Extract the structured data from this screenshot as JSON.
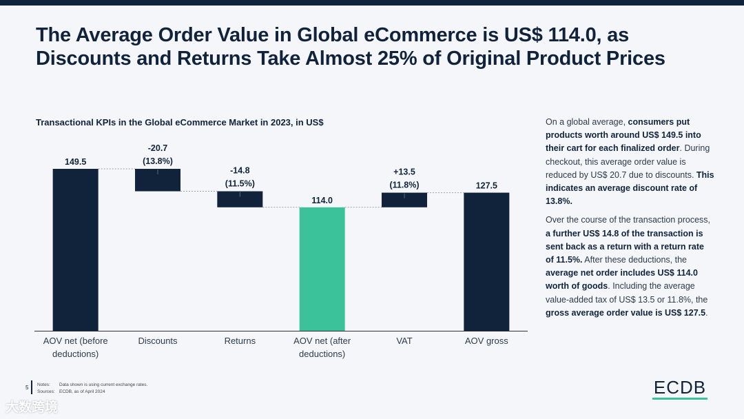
{
  "title": "The Average Order Value in Global eCommerce is US$ 114.0, as Discounts and Returns Take Almost 25% of Original Product Prices",
  "chart_data": {
    "type": "bar",
    "subtype": "waterfall",
    "title": "Transactional KPIs in the Global eCommerce Market in 2023, in US$",
    "categories": [
      "AOV net (before deductions)",
      "Discounts",
      "Returns",
      "AOV net (after deductions)",
      "VAT",
      "AOV gross"
    ],
    "steps": [
      {
        "label": "AOV net (before deductions)",
        "kind": "total",
        "start": 0,
        "end": 149.5,
        "value_label": "149.5",
        "pct_label": ""
      },
      {
        "label": "Discounts",
        "kind": "delta",
        "start": 149.5,
        "end": 128.8,
        "value_label": "-20.7",
        "pct_label": "(13.8%)"
      },
      {
        "label": "Returns",
        "kind": "delta",
        "start": 128.8,
        "end": 114.0,
        "value_label": "-14.8",
        "pct_label": "(11.5%)"
      },
      {
        "label": "AOV net (after deductions)",
        "kind": "highlight",
        "start": 0,
        "end": 114.0,
        "value_label": "114.0",
        "pct_label": ""
      },
      {
        "label": "VAT",
        "kind": "delta",
        "start": 114.0,
        "end": 127.5,
        "value_label": "+13.5",
        "pct_label": "(11.8%)"
      },
      {
        "label": "AOV gross",
        "kind": "total",
        "start": 0,
        "end": 127.5,
        "value_label": "127.5",
        "pct_label": ""
      }
    ],
    "ylim": [
      0,
      149.5
    ],
    "xlabel": "",
    "ylabel": "",
    "colors": {
      "total": "#10233b",
      "delta": "#10233b",
      "highlight": "#3cc29a",
      "axis": "#333333",
      "connector": "#9aa3ad"
    }
  },
  "side": {
    "p1_a": "On a global average, ",
    "p1_b": "consumers put products worth around US$ 149.5 into their cart for each finalized order",
    "p1_c": ". During checkout, this average order value is reduced by US$ 20.7 due to discounts. ",
    "p1_d": "This indicates an average discount rate of 13.8%.",
    "p2_a": "Over the course of the transaction process, ",
    "p2_b": "a further US$ 14.8 of the transaction is sent back as a return with a return rate of 11.5%.",
    "p2_c": " After these deductions, the ",
    "p2_d": "average net order includes US$ 114.0 worth of goods",
    "p2_e": ". Including the average value-added tax of US$ 13.5 or 11.8%, the ",
    "p2_f": "gross average order value is US$ 127.5",
    "p2_g": "."
  },
  "footer": {
    "page_number": "5",
    "notes_label": "Notes:",
    "notes_text": "Data shown is using current exchange rates.",
    "sources_label": "Sources:",
    "sources_text": "ECDB, as of April 2024",
    "logo": "ECDB",
    "watermark": "大数跨境"
  }
}
